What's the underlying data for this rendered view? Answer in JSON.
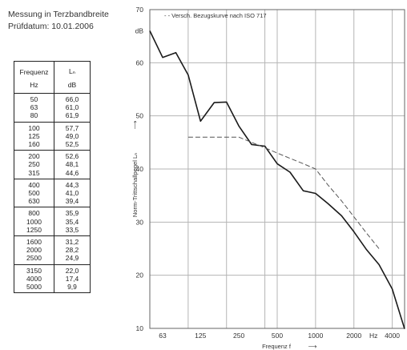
{
  "header": {
    "title": "Messung in Terzbandbreite",
    "date": "Prüfdatum:  10.01.2006"
  },
  "table": {
    "col1_label": "Frequenz",
    "col1_unit": "Hz",
    "col2_label": "Lₙ",
    "col2_unit": "dB",
    "groups": [
      [
        [
          "50",
          "66,0"
        ],
        [
          "63",
          "61,0"
        ],
        [
          "80",
          "61,9"
        ]
      ],
      [
        [
          "100",
          "57,7"
        ],
        [
          "125",
          "49,0"
        ],
        [
          "160",
          "52,5"
        ]
      ],
      [
        [
          "200",
          "52,6"
        ],
        [
          "250",
          "48,1"
        ],
        [
          "315",
          "44,6"
        ]
      ],
      [
        [
          "400",
          "44,3"
        ],
        [
          "500",
          "41,0"
        ],
        [
          "630",
          "39,4"
        ]
      ],
      [
        [
          "800",
          "35,9"
        ],
        [
          "1000",
          "35,4"
        ],
        [
          "1250",
          "33,5"
        ]
      ],
      [
        [
          "1600",
          "31,2"
        ],
        [
          "2000",
          "28,2"
        ],
        [
          "2500",
          "24,9"
        ]
      ],
      [
        [
          "3150",
          "22,0"
        ],
        [
          "4000",
          "17,4"
        ],
        [
          "5000",
          "9,9"
        ]
      ]
    ]
  },
  "chart_data": {
    "type": "line",
    "legend": "- -  Versch. Bezugskurve nach ISO 717",
    "legend_placement": "top",
    "ylabel": "Norm-Trittschallpegel Lₙ",
    "y_arrow": "⟶",
    "xlabel": "Frequenz f",
    "x_arrow": "⟶",
    "y_unit": "dB",
    "x_unit": "Hz",
    "x_scale": "log",
    "ylim": [
      10,
      70
    ],
    "xlim": [
      50,
      5000
    ],
    "grid": true,
    "y_ticks": [
      "10",
      "20",
      "30",
      "40",
      "50",
      "60",
      "70"
    ],
    "x_ticks": [
      "63",
      "125",
      "250",
      "500",
      "1000",
      "2000",
      "4000"
    ],
    "series": [
      {
        "style": "solid",
        "x": [
          50,
          63,
          80,
          100,
          125,
          160,
          200,
          250,
          315,
          400,
          500,
          630,
          800,
          1000,
          1250,
          1600,
          2000,
          2500,
          3150,
          4000,
          5000
        ],
        "y": [
          66.0,
          61.0,
          61.9,
          57.7,
          49.0,
          52.5,
          52.6,
          48.1,
          44.6,
          44.3,
          41.0,
          39.4,
          35.9,
          35.4,
          33.5,
          31.2,
          28.2,
          24.9,
          22.0,
          17.4,
          9.9
        ]
      },
      {
        "style": "dashed",
        "x": [
          100,
          125,
          160,
          200,
          250,
          315,
          400,
          500,
          630,
          800,
          1000,
          1250,
          1600,
          2000,
          2500,
          3150
        ],
        "y": [
          46,
          46,
          46,
          46,
          46,
          45,
          44,
          43,
          42,
          41,
          40,
          37,
          34,
          31,
          28,
          25
        ]
      }
    ]
  }
}
